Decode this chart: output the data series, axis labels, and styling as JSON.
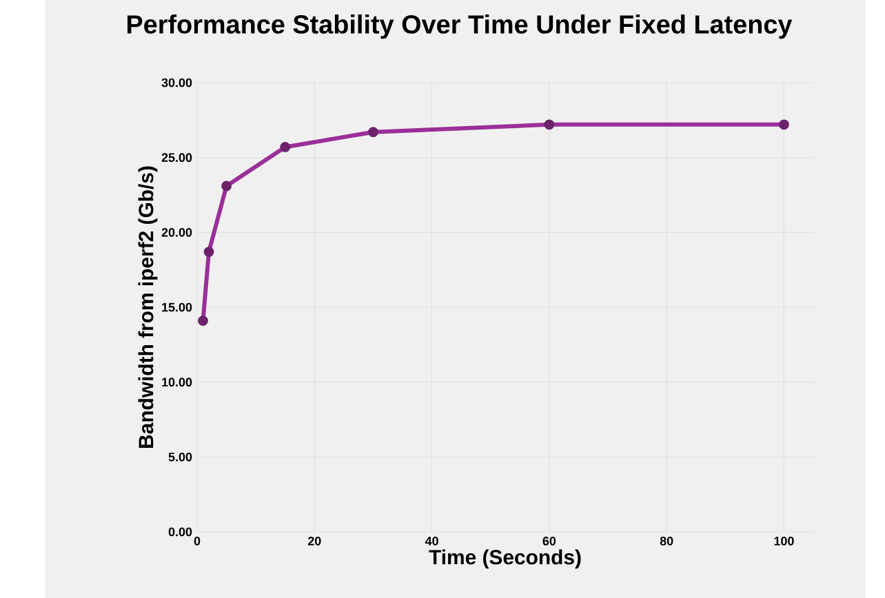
{
  "chart_data": {
    "type": "line",
    "title": "Performance Stability Over Time Under Fixed Latency",
    "xlabel": "Time (Seconds)",
    "ylabel": "Bandwidth from iperf2 (Gb/s)",
    "x": [
      1,
      2,
      5,
      15,
      30,
      60,
      100
    ],
    "series": [
      {
        "color": "#9b2f98",
        "values": [
          14.1,
          18.7,
          23.1,
          25.7,
          26.7,
          27.2,
          27.2
        ]
      }
    ],
    "xlim": [
      0,
      105
    ],
    "xticks": [
      0,
      20,
      40,
      60,
      80,
      100
    ],
    "ylim": [
      0,
      30
    ],
    "yticks": [
      {
        "value": 0,
        "label": "0.00"
      },
      {
        "value": 5,
        "label": "5.00"
      },
      {
        "value": 10,
        "label": "10.00"
      },
      {
        "value": 15,
        "label": "15.00"
      },
      {
        "value": 20,
        "label": "20.00"
      },
      {
        "value": 25,
        "label": "25.00"
      },
      {
        "value": 30,
        "label": "30.00"
      }
    ],
    "grid": true,
    "marker": "circle",
    "line_style": "solid"
  }
}
